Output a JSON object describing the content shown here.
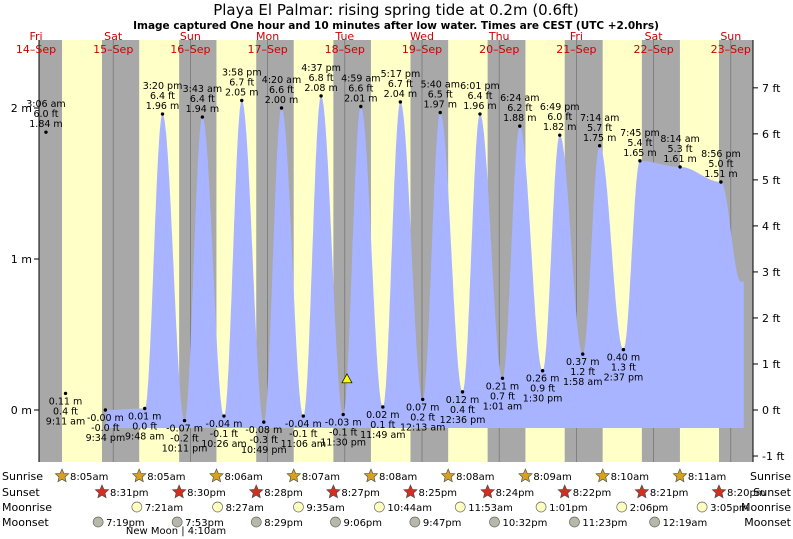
{
  "chart_data": {
    "type": "area",
    "title": "Playa El Palmar: rising  spring tide at 0.2m (0.6ft)",
    "subtitle": "Image captured One hour and 10 minutes after low water. Times are CEST (UTC +2.0hrs)",
    "y_left_unit": "m",
    "y_right_unit": "ft",
    "ylim_m": [
      -0.34,
      2.39
    ],
    "left_ticks": [
      "2 m",
      "1 m",
      "0 m"
    ],
    "right_ticks": [
      "7 ft",
      "6 ft",
      "5 ft",
      "4 ft",
      "3 ft",
      "2 ft",
      "1 ft",
      "0 ft",
      "-1 ft"
    ],
    "days": [
      {
        "dow": "Fri",
        "date": "14–Sep"
      },
      {
        "dow": "Sat",
        "date": "15–Sep"
      },
      {
        "dow": "Sun",
        "date": "16–Sep"
      },
      {
        "dow": "Mon",
        "date": "17–Sep"
      },
      {
        "dow": "Tue",
        "date": "18–Sep"
      },
      {
        "dow": "Wed",
        "date": "19–Sep"
      },
      {
        "dow": "Thu",
        "date": "20–Sep"
      },
      {
        "dow": "Fri",
        "date": "21–Sep"
      },
      {
        "dow": "Sat",
        "date": "22–Sep"
      },
      {
        "dow": "Sun",
        "date": "23–Sep"
      }
    ],
    "high_tides": [
      {
        "day": 0,
        "time": "3:06 am",
        "ft": "6.0 ft",
        "m": "1.84 m",
        "v": 1.84,
        "h": 3.1
      },
      {
        "day": 1,
        "time": "3:20 pm",
        "ft": "6.4 ft",
        "m": "1.96 m",
        "v": 1.96,
        "h": 15.33
      },
      {
        "day": 2,
        "time": "3:43 am",
        "ft": "6.4 ft",
        "m": "1.94 m",
        "v": 1.94,
        "h": 3.72
      },
      {
        "day": 2,
        "time": "3:58 pm",
        "ft": "6.7 ft",
        "m": "2.05 m",
        "v": 2.05,
        "h": 15.97
      },
      {
        "day": 3,
        "time": "4:20 am",
        "ft": "6.6 ft",
        "m": "2.00 m",
        "v": 2.0,
        "h": 4.33
      },
      {
        "day": 3,
        "time": "4:37 pm",
        "ft": "6.8 ft",
        "m": "2.08 m",
        "v": 2.08,
        "h": 16.62
      },
      {
        "day": 4,
        "time": "4:59 am",
        "ft": "6.6 ft",
        "m": "2.01 m",
        "v": 2.01,
        "h": 4.98
      },
      {
        "day": 4,
        "time": "5:17 pm",
        "ft": "6.7 ft",
        "m": "2.04 m",
        "v": 2.04,
        "h": 17.28
      },
      {
        "day": 5,
        "time": "5:40 am",
        "ft": "6.5 ft",
        "m": "1.97 m",
        "v": 1.97,
        "h": 5.67
      },
      {
        "day": 5,
        "time": "6:01 pm",
        "ft": "6.4 ft",
        "m": "1.96 m",
        "v": 1.96,
        "h": 18.02
      },
      {
        "day": 6,
        "time": "6:24 am",
        "ft": "6.2 ft",
        "m": "1.88 m",
        "v": 1.88,
        "h": 6.4
      },
      {
        "day": 6,
        "time": "6:49 pm",
        "ft": "6.0 ft",
        "m": "1.82 m",
        "v": 1.82,
        "h": 18.82
      },
      {
        "day": 7,
        "time": "7:14 am",
        "ft": "5.7 ft",
        "m": "1.75 m",
        "v": 1.75,
        "h": 7.23
      },
      {
        "day": 7,
        "time": "7:45 pm",
        "ft": "5.4 ft",
        "m": "1.65 m",
        "v": 1.65,
        "h": 19.75
      },
      {
        "day": 8,
        "time": "8:14 am",
        "ft": "5.3 ft",
        "m": "1.61 m",
        "v": 1.61,
        "h": 8.23
      },
      {
        "day": 8,
        "time": "8:56 pm",
        "ft": "5.0 ft",
        "m": "1.51 m",
        "v": 1.51,
        "h": 20.93
      }
    ],
    "low_tides": [
      {
        "day": 0,
        "m": "0.11 m",
        "ft": "0.4 ft",
        "time": "9:11 am",
        "v": 0.11,
        "h": 9.18
      },
      {
        "day": 0,
        "m": "-0.00 m",
        "ft": "-0.0 ft",
        "time": "9:34 pm",
        "v": -0.0,
        "h": 21.57
      },
      {
        "day": 1,
        "m": "0.01 m",
        "ft": "0.0 ft",
        "time": "9:48 am",
        "v": 0.01,
        "h": 9.8
      },
      {
        "day": 1,
        "m": "-0.07 m",
        "ft": "-0.2 ft",
        "time": "10:11 pm",
        "v": -0.07,
        "h": 22.18
      },
      {
        "day": 2,
        "m": "-0.04 m",
        "ft": "-0.1 ft",
        "time": "10:26 am",
        "v": -0.04,
        "h": 10.43
      },
      {
        "day": 2,
        "m": "-0.08 m",
        "ft": "-0.3 ft",
        "time": "10:49 pm",
        "v": -0.08,
        "h": 22.82
      },
      {
        "day": 3,
        "m": "-0.04 m",
        "ft": "-0.1 ft",
        "time": "11:06 am",
        "v": -0.04,
        "h": 11.1
      },
      {
        "day": 3,
        "m": "-0.03 m",
        "ft": "-0.1 ft",
        "time": "11:30 pm",
        "v": -0.03,
        "h": 23.5
      },
      {
        "day": 4,
        "m": "0.02 m",
        "ft": "0.1 ft",
        "time": "11:49 am",
        "v": 0.02,
        "h": 11.82
      },
      {
        "day": 5,
        "m": "0.07 m",
        "ft": "0.2 ft",
        "time": "12:13 am",
        "v": 0.07,
        "h": 0.22
      },
      {
        "day": 5,
        "m": "0.12 m",
        "ft": "0.4 ft",
        "time": "12:36 pm",
        "v": 0.12,
        "h": 12.6
      },
      {
        "day": 6,
        "m": "0.21 m",
        "ft": "0.7 ft",
        "time": "1:01 am",
        "v": 0.21,
        "h": 1.02
      },
      {
        "day": 6,
        "m": "0.26 m",
        "ft": "0.9 ft",
        "time": "1:30 pm",
        "v": 0.26,
        "h": 13.5
      },
      {
        "day": 7,
        "m": "0.37 m",
        "ft": "1.2 ft",
        "time": "1:58 am",
        "v": 0.37,
        "h": 1.97
      },
      {
        "day": 7,
        "m": "0.40 m",
        "ft": "1.3 ft",
        "time": "2:37 pm",
        "v": 0.4,
        "h": 14.62
      }
    ],
    "current_marker": {
      "v": 0.2,
      "day": 4,
      "h": 0.67
    },
    "sunrise": [
      "8:05am",
      "8:05am",
      "8:06am",
      "8:07am",
      "8:08am",
      "8:08am",
      "8:09am",
      "8:10am",
      "8:11am"
    ],
    "sunset": [
      "8:31pm",
      "8:30pm",
      "8:28pm",
      "8:27pm",
      "8:25pm",
      "8:24pm",
      "8:22pm",
      "8:21pm",
      "8:20pm"
    ],
    "moonrise": [
      "7:21am",
      "8:27am",
      "9:35am",
      "10:44am",
      "11:53am",
      "1:01pm",
      "2:06pm",
      "3:05pm"
    ],
    "moonset": [
      "7:19pm",
      "7:53pm",
      "8:29pm",
      "9:06pm",
      "9:47pm",
      "10:32pm",
      "11:23pm",
      "12:19am"
    ],
    "legend_labels": {
      "sunrise": "Sunrise",
      "sunset": "Sunset",
      "moonrise": "Moonrise",
      "moonset": "Moonset"
    },
    "moon_phase_note": "New Moon | 4:10am",
    "colors": {
      "day": "#ffffc8",
      "night": "#a8a8a8",
      "water": "#a8b4ff",
      "date_red": "#cc0000",
      "marker": "#ffff00"
    }
  }
}
